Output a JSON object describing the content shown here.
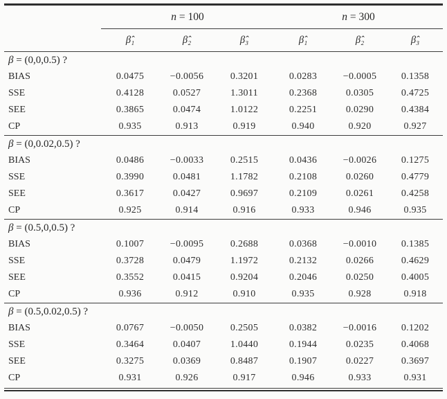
{
  "table": {
    "col_headers": {
      "n100": {
        "symbol": "n",
        "eq": " = 100"
      },
      "n300": {
        "symbol": "n",
        "eq": " = 300"
      },
      "betas": [
        "β̂₁",
        "β̂₂",
        "β̂₃",
        "β̂₁",
        "β̂₂",
        "β̂₃"
      ]
    },
    "groups": [
      {
        "beta": "β",
        "vector": " = (0,0,0.5) ?",
        "rows": [
          {
            "label": "BIAS",
            "values": [
              "0.0475",
              "−0.0056",
              "0.3201",
              "0.0283",
              "−0.0005",
              "0.1358"
            ]
          },
          {
            "label": "SSE",
            "values": [
              "0.4128",
              "0.0527",
              "1.3011",
              "0.2368",
              "0.0305",
              "0.4725"
            ]
          },
          {
            "label": "SEE",
            "values": [
              "0.3865",
              "0.0474",
              "1.0122",
              "0.2251",
              "0.0290",
              "0.4384"
            ]
          },
          {
            "label": "CP",
            "values": [
              "0.935",
              "0.913",
              "0.919",
              "0.940",
              "0.920",
              "0.927"
            ]
          }
        ]
      },
      {
        "beta": "β",
        "vector": " = (0,0.02,0.5) ?",
        "rows": [
          {
            "label": "BIAS",
            "values": [
              "0.0486",
              "−0.0033",
              "0.2515",
              "0.0436",
              "−0.0026",
              "0.1275"
            ]
          },
          {
            "label": "SSE",
            "values": [
              "0.3990",
              "0.0481",
              "1.1782",
              "0.2108",
              "0.0260",
              "0.4779"
            ]
          },
          {
            "label": "SEE",
            "values": [
              "0.3617",
              "0.0427",
              "0.9697",
              "0.2109",
              "0.0261",
              "0.4258"
            ]
          },
          {
            "label": "CP",
            "values": [
              "0.925",
              "0.914",
              "0.916",
              "0.933",
              "0.946",
              "0.935"
            ]
          }
        ]
      },
      {
        "beta": "β",
        "vector": " = (0.5,0,0.5) ?",
        "rows": [
          {
            "label": "BIAS",
            "values": [
              "0.1007",
              "−0.0095",
              "0.2688",
              "0.0368",
              "−0.0010",
              "0.1385"
            ]
          },
          {
            "label": "SSE",
            "values": [
              "0.3728",
              "0.0479",
              "1.1972",
              "0.2132",
              "0.0266",
              "0.4629"
            ]
          },
          {
            "label": "SEE",
            "values": [
              "0.3552",
              "0.0415",
              "0.9204",
              "0.2046",
              "0.0250",
              "0.4005"
            ]
          },
          {
            "label": "CP",
            "values": [
              "0.936",
              "0.912",
              "0.910",
              "0.935",
              "0.928",
              "0.918"
            ]
          }
        ]
      },
      {
        "beta": "β",
        "vector": " = (0.5,0.02,0.5) ?",
        "rows": [
          {
            "label": "BIAS",
            "values": [
              "0.0767",
              "−0.0050",
              "0.2505",
              "0.0382",
              "−0.0016",
              "0.1202"
            ]
          },
          {
            "label": "SSE",
            "values": [
              "0.3464",
              "0.0407",
              "1.0440",
              "0.1944",
              "0.0235",
              "0.4068"
            ]
          },
          {
            "label": "SEE",
            "values": [
              "0.3275",
              "0.0369",
              "0.8487",
              "0.1907",
              "0.0227",
              "0.3697"
            ]
          },
          {
            "label": "CP",
            "values": [
              "0.931",
              "0.926",
              "0.917",
              "0.946",
              "0.933",
              "0.931"
            ]
          }
        ]
      }
    ]
  }
}
